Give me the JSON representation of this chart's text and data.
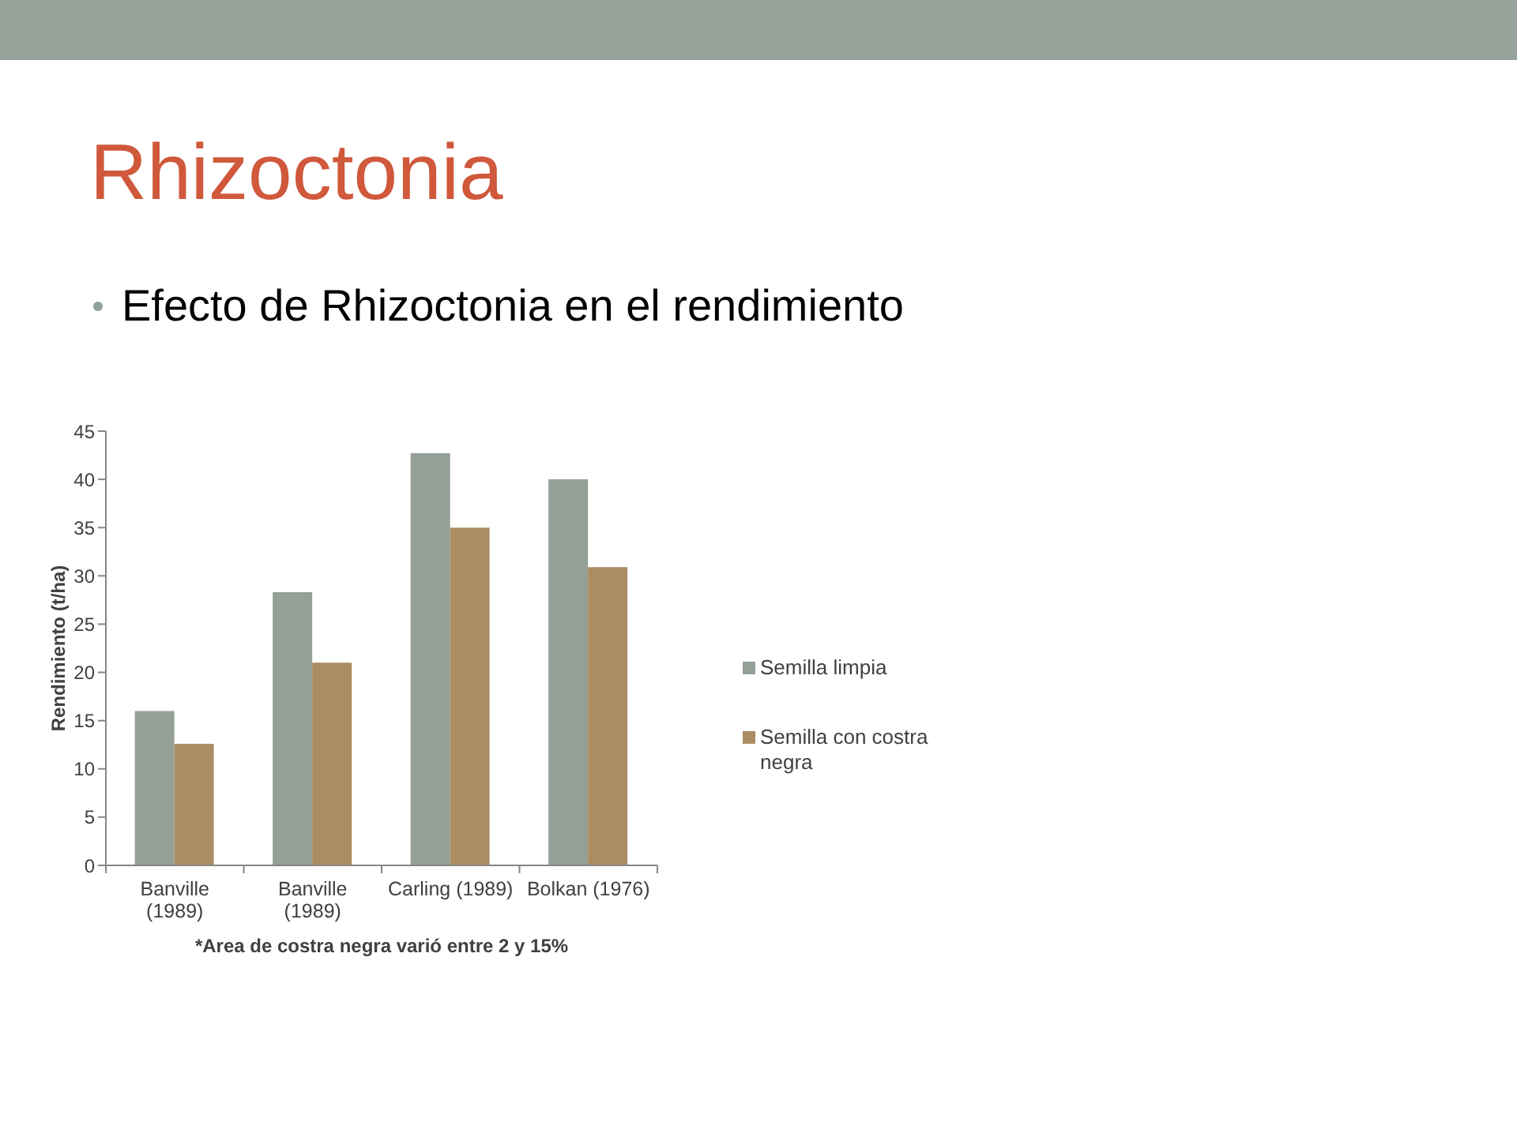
{
  "chart_data": {
    "type": "bar",
    "title": "Rhizoctonia",
    "subtitle": "Efecto de Rhizoctonia en el rendimiento",
    "ylabel": "Rendimiento (t/ha)",
    "categories": [
      "Banville (1989)",
      "Banville (1989)",
      "Carling (1989)",
      "Bolkan (1976)"
    ],
    "series": [
      {
        "name": "Semilla limpia",
        "color": "#949f96",
        "values": [
          16,
          28.3,
          42.7,
          40
        ]
      },
      {
        "name": "Semilla con costra negra",
        "color": "#ac8c63",
        "values": [
          12.6,
          21,
          35,
          30.9
        ]
      }
    ],
    "ylim": [
      0,
      45
    ],
    "yticks": [
      0,
      5,
      10,
      15,
      20,
      25,
      30,
      35,
      40,
      45
    ],
    "legend": "right",
    "annotations": [
      "*Area de costra negra varió entre 2 y 15%"
    ]
  }
}
